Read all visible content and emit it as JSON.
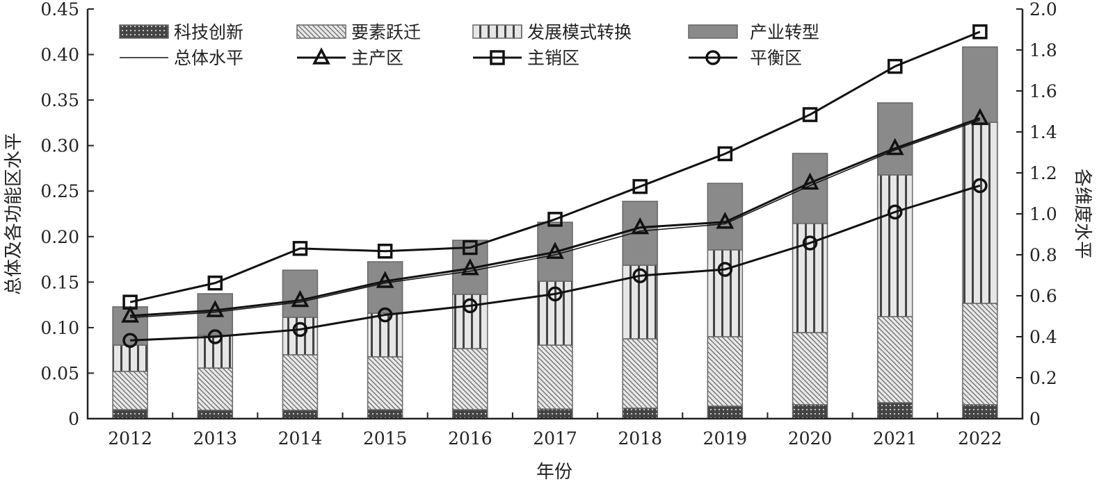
{
  "chart_data": {
    "type": "bar+line",
    "categories": [
      "2012",
      "2013",
      "2014",
      "2015",
      "2016",
      "2017",
      "2018",
      "2019",
      "2020",
      "2021",
      "2022"
    ],
    "xlabel": "年份",
    "ylabel_left": "总体及各功能区水平",
    "ylabel_right": "各维度水平",
    "ylim_left": [
      0,
      0.45
    ],
    "ylim_right": [
      0,
      2.0
    ],
    "yticks_left": [
      "0",
      "0.05",
      "0.10",
      "0.15",
      "0.20",
      "0.25",
      "0.30",
      "0.35",
      "0.40",
      "0.45"
    ],
    "yticks_right": [
      "0",
      "0.2",
      "0.4",
      "0.6",
      "0.8",
      "1.0",
      "1.2",
      "1.4",
      "1.6",
      "1.8",
      "2.0"
    ],
    "legend_position": "top",
    "bar_series": [
      {
        "name": "科技创新",
        "axis": "right",
        "pattern": "checker",
        "values": [
          0.044,
          0.041,
          0.041,
          0.044,
          0.044,
          0.047,
          0.051,
          0.061,
          0.068,
          0.078,
          0.068
        ]
      },
      {
        "name": "要素跃迁",
        "axis": "right",
        "pattern": "diagonal",
        "values": [
          0.187,
          0.206,
          0.271,
          0.258,
          0.298,
          0.312,
          0.339,
          0.339,
          0.352,
          0.42,
          0.495
        ]
      },
      {
        "name": "发展模式转换",
        "axis": "right",
        "pattern": "vertical",
        "values": [
          0.128,
          0.16,
          0.183,
          0.213,
          0.265,
          0.312,
          0.359,
          0.424,
          0.533,
          0.692,
          0.884
        ]
      },
      {
        "name": "产业转型",
        "axis": "right",
        "pattern": "solid",
        "values": [
          0.187,
          0.203,
          0.23,
          0.251,
          0.264,
          0.288,
          0.312,
          0.325,
          0.342,
          0.352,
          0.368
        ]
      }
    ],
    "line_series": [
      {
        "name": "总体水平",
        "axis": "left",
        "marker": "none",
        "values": [
          0.111,
          0.117,
          0.128,
          0.149,
          0.162,
          0.18,
          0.206,
          0.214,
          0.256,
          0.295,
          0.328
        ]
      },
      {
        "name": "主产区",
        "axis": "left",
        "marker": "triangle",
        "values": [
          0.113,
          0.119,
          0.13,
          0.151,
          0.165,
          0.183,
          0.21,
          0.216,
          0.259,
          0.297,
          0.33
        ]
      },
      {
        "name": "主销区",
        "axis": "left",
        "marker": "square",
        "values": [
          0.128,
          0.149,
          0.187,
          0.184,
          0.188,
          0.219,
          0.255,
          0.291,
          0.334,
          0.387,
          0.425
        ]
      },
      {
        "name": "平衡区",
        "axis": "left",
        "marker": "circle",
        "values": [
          0.086,
          0.09,
          0.098,
          0.114,
          0.124,
          0.137,
          0.157,
          0.164,
          0.193,
          0.227,
          0.256
        ]
      }
    ],
    "colors": {
      "axis": "#222222",
      "solid_bar": "#8a8a8a",
      "light_bar": "#e6e6e6",
      "dark": "#444444"
    }
  }
}
